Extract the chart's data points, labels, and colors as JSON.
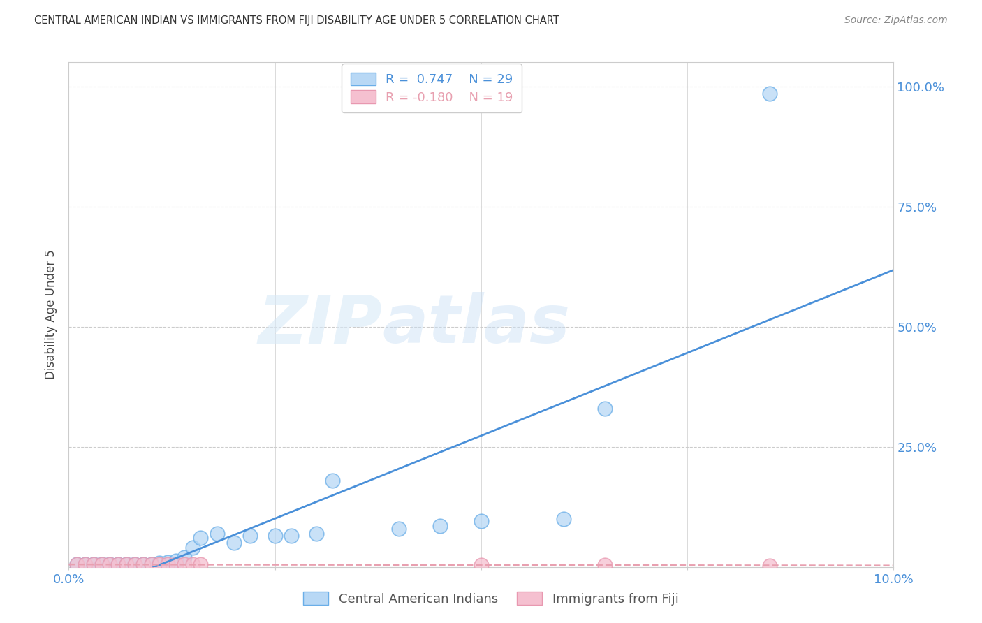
{
  "title": "CENTRAL AMERICAN INDIAN VS IMMIGRANTS FROM FIJI DISABILITY AGE UNDER 5 CORRELATION CHART",
  "source": "Source: ZipAtlas.com",
  "ylabel": "Disability Age Under 5",
  "x_range": [
    0.0,
    0.1
  ],
  "y_range": [
    0.0,
    1.05
  ],
  "blue_R": 0.747,
  "blue_N": 29,
  "pink_R": -0.18,
  "pink_N": 19,
  "blue_scatter_x": [
    0.001,
    0.002,
    0.003,
    0.004,
    0.005,
    0.006,
    0.007,
    0.008,
    0.009,
    0.01,
    0.011,
    0.012,
    0.013,
    0.014,
    0.015,
    0.016,
    0.018,
    0.02,
    0.022,
    0.025,
    0.027,
    0.03,
    0.032,
    0.04,
    0.045,
    0.05,
    0.06,
    0.065,
    0.085
  ],
  "blue_scatter_y": [
    0.005,
    0.005,
    0.005,
    0.005,
    0.005,
    0.005,
    0.005,
    0.005,
    0.005,
    0.005,
    0.008,
    0.01,
    0.012,
    0.02,
    0.04,
    0.06,
    0.07,
    0.05,
    0.065,
    0.065,
    0.065,
    0.07,
    0.18,
    0.08,
    0.085,
    0.095,
    0.1,
    0.33,
    0.985
  ],
  "pink_scatter_x": [
    0.001,
    0.002,
    0.003,
    0.004,
    0.005,
    0.006,
    0.007,
    0.008,
    0.009,
    0.01,
    0.011,
    0.012,
    0.013,
    0.014,
    0.015,
    0.016,
    0.05,
    0.065,
    0.085
  ],
  "pink_scatter_y": [
    0.005,
    0.005,
    0.005,
    0.005,
    0.005,
    0.005,
    0.005,
    0.005,
    0.005,
    0.005,
    0.005,
    0.005,
    0.005,
    0.005,
    0.005,
    0.005,
    0.004,
    0.004,
    0.003
  ],
  "blue_line_color": "#4a90d9",
  "pink_line_color": "#e8a0b0",
  "blue_scatter_facecolor": "#b8d8f5",
  "blue_scatter_edgecolor": "#6aaee8",
  "pink_scatter_facecolor": "#f5c0d0",
  "pink_scatter_edgecolor": "#e898b0",
  "watermark_zip": "ZIP",
  "watermark_atlas": "atlas",
  "legend_label_blue": "Central American Indians",
  "legend_label_pink": "Immigrants from Fiji",
  "ytick_vals": [
    0.0,
    0.25,
    0.5,
    0.75,
    1.0
  ],
  "ytick_labels": [
    "",
    "25.0%",
    "50.0%",
    "75.0%",
    "100.0%"
  ],
  "xtick_vals": [
    0.0,
    0.025,
    0.05,
    0.075,
    0.1
  ],
  "xtick_labels_show": [
    "0.0%",
    "",
    "",
    "",
    "10.0%"
  ],
  "grid_color": "#cccccc",
  "spine_color": "#cccccc"
}
